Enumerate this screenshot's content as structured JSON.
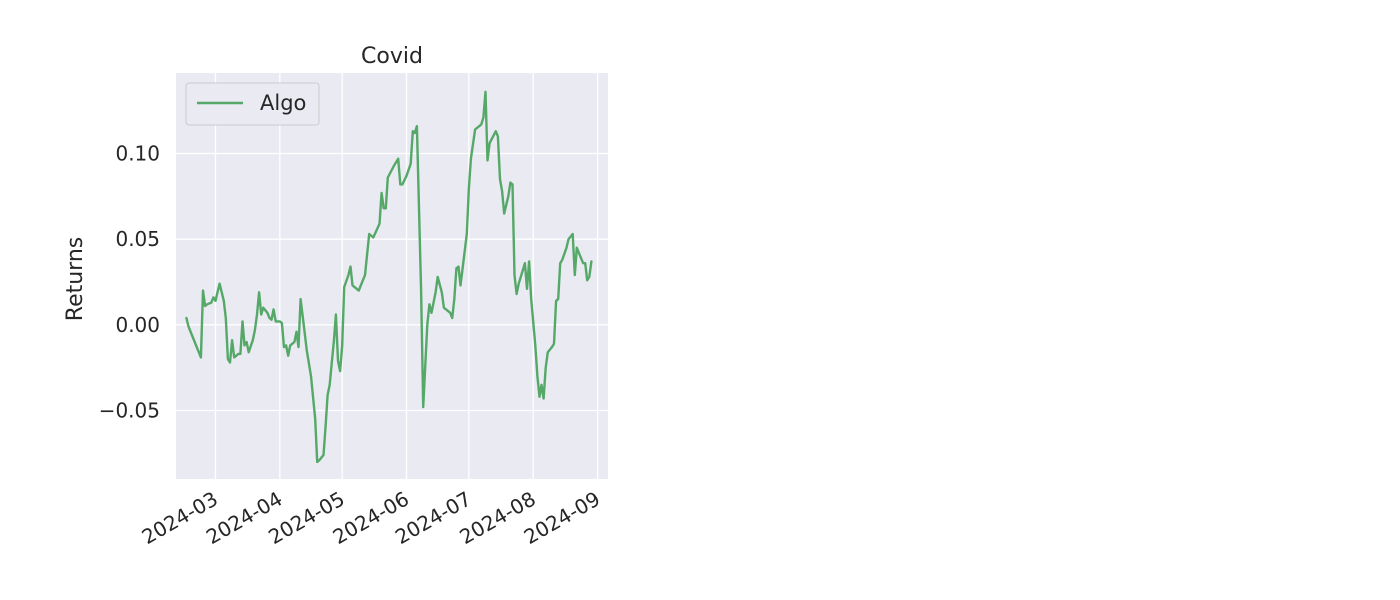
{
  "chart_data": {
    "type": "line",
    "title": "Covid",
    "xlabel": "",
    "ylabel": "Returns",
    "x_ticks": [
      "2024-03",
      "2024-04",
      "2024-05",
      "2024-06",
      "2024-07",
      "2024-08",
      "2024-09"
    ],
    "y_ticks": [
      "−0.05",
      "0.00",
      "0.05",
      "0.10"
    ],
    "y_tick_values": [
      -0.05,
      0.0,
      0.05,
      0.1
    ],
    "xlim": [
      "2024-02-11",
      "2024-09-06"
    ],
    "ylim": [
      -0.09,
      0.147
    ],
    "grid": true,
    "legend_position": "top-left",
    "series": [
      {
        "name": "Algo",
        "color": "#55a868",
        "points": [
          [
            "2024-02-16",
            0.004
          ],
          [
            "2024-02-17",
            -0.001
          ],
          [
            "2024-02-20",
            -0.01
          ],
          [
            "2024-02-22",
            -0.016
          ],
          [
            "2024-02-23",
            -0.019
          ],
          [
            "2024-02-24",
            0.02
          ],
          [
            "2024-02-25",
            0.011
          ],
          [
            "2024-02-26",
            0.012
          ],
          [
            "2024-02-28",
            0.013
          ],
          [
            "2024-02-29",
            0.016
          ],
          [
            "2024-03-01",
            0.014
          ],
          [
            "2024-03-02",
            0.019
          ],
          [
            "2024-03-03",
            0.024
          ],
          [
            "2024-03-05",
            0.014
          ],
          [
            "2024-03-06",
            0.004
          ],
          [
            "2024-03-07",
            -0.02
          ],
          [
            "2024-03-08",
            -0.022
          ],
          [
            "2024-03-09",
            -0.009
          ],
          [
            "2024-03-10",
            -0.019
          ],
          [
            "2024-03-12",
            -0.017
          ],
          [
            "2024-03-13",
            -0.017
          ],
          [
            "2024-03-14",
            0.002
          ],
          [
            "2024-03-15",
            -0.012
          ],
          [
            "2024-03-16",
            -0.01
          ],
          [
            "2024-03-17",
            -0.016
          ],
          [
            "2024-03-19",
            -0.009
          ],
          [
            "2024-03-20",
            -0.003
          ],
          [
            "2024-03-21",
            0.006
          ],
          [
            "2024-03-22",
            0.019
          ],
          [
            "2024-03-23",
            0.006
          ],
          [
            "2024-03-24",
            0.01
          ],
          [
            "2024-03-26",
            0.007
          ],
          [
            "2024-03-27",
            0.004
          ],
          [
            "2024-03-28",
            0.003
          ],
          [
            "2024-03-29",
            0.009
          ],
          [
            "2024-03-30",
            0.002
          ],
          [
            "2024-04-01",
            0.002
          ],
          [
            "2024-04-02",
            0.001
          ],
          [
            "2024-04-03",
            -0.013
          ],
          [
            "2024-04-04",
            -0.012
          ],
          [
            "2024-04-05",
            -0.018
          ],
          [
            "2024-04-06",
            -0.012
          ],
          [
            "2024-04-08",
            -0.01
          ],
          [
            "2024-04-09",
            -0.004
          ],
          [
            "2024-04-10",
            -0.013
          ],
          [
            "2024-04-11",
            0.015
          ],
          [
            "2024-04-12",
            0.005
          ],
          [
            "2024-04-14",
            -0.015
          ],
          [
            "2024-04-16",
            -0.03
          ],
          [
            "2024-04-18",
            -0.055
          ],
          [
            "2024-04-19",
            -0.08
          ],
          [
            "2024-04-20",
            -0.079
          ],
          [
            "2024-04-22",
            -0.076
          ],
          [
            "2024-04-23",
            -0.06
          ],
          [
            "2024-04-24",
            -0.041
          ],
          [
            "2024-04-25",
            -0.035
          ],
          [
            "2024-04-26",
            -0.022
          ],
          [
            "2024-04-27",
            -0.01
          ],
          [
            "2024-04-28",
            0.006
          ],
          [
            "2024-04-29",
            -0.021
          ],
          [
            "2024-04-30",
            -0.027
          ],
          [
            "2024-05-01",
            -0.012
          ],
          [
            "2024-05-02",
            0.022
          ],
          [
            "2024-05-04",
            0.029
          ],
          [
            "2024-05-05",
            0.034
          ],
          [
            "2024-05-06",
            0.023
          ],
          [
            "2024-05-08",
            0.021
          ],
          [
            "2024-05-09",
            0.02
          ],
          [
            "2024-05-10",
            0.023
          ],
          [
            "2024-05-12",
            0.029
          ],
          [
            "2024-05-14",
            0.053
          ],
          [
            "2024-05-16",
            0.051
          ],
          [
            "2024-05-19",
            0.059
          ],
          [
            "2024-05-20",
            0.077
          ],
          [
            "2024-05-21",
            0.068
          ],
          [
            "2024-05-22",
            0.068
          ],
          [
            "2024-05-23",
            0.086
          ],
          [
            "2024-05-26",
            0.093
          ],
          [
            "2024-05-28",
            0.097
          ],
          [
            "2024-05-29",
            0.082
          ],
          [
            "2024-05-30",
            0.082
          ],
          [
            "2024-06-01",
            0.087
          ],
          [
            "2024-06-03",
            0.094
          ],
          [
            "2024-06-04",
            0.113
          ],
          [
            "2024-06-05",
            0.112
          ],
          [
            "2024-06-06",
            0.116
          ],
          [
            "2024-06-08",
            0.02
          ],
          [
            "2024-06-09",
            -0.048
          ],
          [
            "2024-06-11",
            0.0
          ],
          [
            "2024-06-12",
            0.012
          ],
          [
            "2024-06-13",
            0.007
          ],
          [
            "2024-06-15",
            0.019
          ],
          [
            "2024-06-16",
            0.028
          ],
          [
            "2024-06-18",
            0.019
          ],
          [
            "2024-06-19",
            0.01
          ],
          [
            "2024-06-22",
            0.007
          ],
          [
            "2024-06-23",
            0.004
          ],
          [
            "2024-06-24",
            0.015
          ],
          [
            "2024-06-25",
            0.033
          ],
          [
            "2024-06-26",
            0.034
          ],
          [
            "2024-06-27",
            0.023
          ],
          [
            "2024-06-28",
            0.033
          ],
          [
            "2024-06-30",
            0.053
          ],
          [
            "2024-07-01",
            0.079
          ],
          [
            "2024-07-02",
            0.097
          ],
          [
            "2024-07-04",
            0.114
          ],
          [
            "2024-07-07",
            0.117
          ],
          [
            "2024-07-08",
            0.121
          ],
          [
            "2024-07-09",
            0.136
          ],
          [
            "2024-07-10",
            0.096
          ],
          [
            "2024-07-11",
            0.106
          ],
          [
            "2024-07-14",
            0.113
          ],
          [
            "2024-07-15",
            0.11
          ],
          [
            "2024-07-16",
            0.085
          ],
          [
            "2024-07-17",
            0.078
          ],
          [
            "2024-07-18",
            0.065
          ],
          [
            "2024-07-20",
            0.075
          ],
          [
            "2024-07-21",
            0.083
          ],
          [
            "2024-07-22",
            0.082
          ],
          [
            "2024-07-23",
            0.029
          ],
          [
            "2024-07-24",
            0.018
          ],
          [
            "2024-07-25",
            0.024
          ],
          [
            "2024-07-26",
            0.028
          ],
          [
            "2024-07-28",
            0.036
          ],
          [
            "2024-07-29",
            0.021
          ],
          [
            "2024-07-30",
            0.037
          ],
          [
            "2024-07-31",
            0.015
          ],
          [
            "2024-08-02",
            -0.012
          ],
          [
            "2024-08-03",
            -0.03
          ],
          [
            "2024-08-04",
            -0.042
          ],
          [
            "2024-08-05",
            -0.035
          ],
          [
            "2024-08-06",
            -0.043
          ],
          [
            "2024-08-07",
            -0.025
          ],
          [
            "2024-08-08",
            -0.016
          ],
          [
            "2024-08-10",
            -0.013
          ],
          [
            "2024-08-11",
            -0.011
          ],
          [
            "2024-08-12",
            0.014
          ],
          [
            "2024-08-13",
            0.015
          ],
          [
            "2024-08-14",
            0.036
          ],
          [
            "2024-08-15",
            0.038
          ],
          [
            "2024-08-17",
            0.045
          ],
          [
            "2024-08-18",
            0.05
          ],
          [
            "2024-08-20",
            0.053
          ],
          [
            "2024-08-21",
            0.029
          ],
          [
            "2024-08-22",
            0.045
          ],
          [
            "2024-08-23",
            0.042
          ],
          [
            "2024-08-25",
            0.036
          ],
          [
            "2024-08-26",
            0.036
          ],
          [
            "2024-08-27",
            0.026
          ],
          [
            "2024-08-28",
            0.028
          ],
          [
            "2024-08-29",
            0.037
          ]
        ]
      }
    ]
  }
}
